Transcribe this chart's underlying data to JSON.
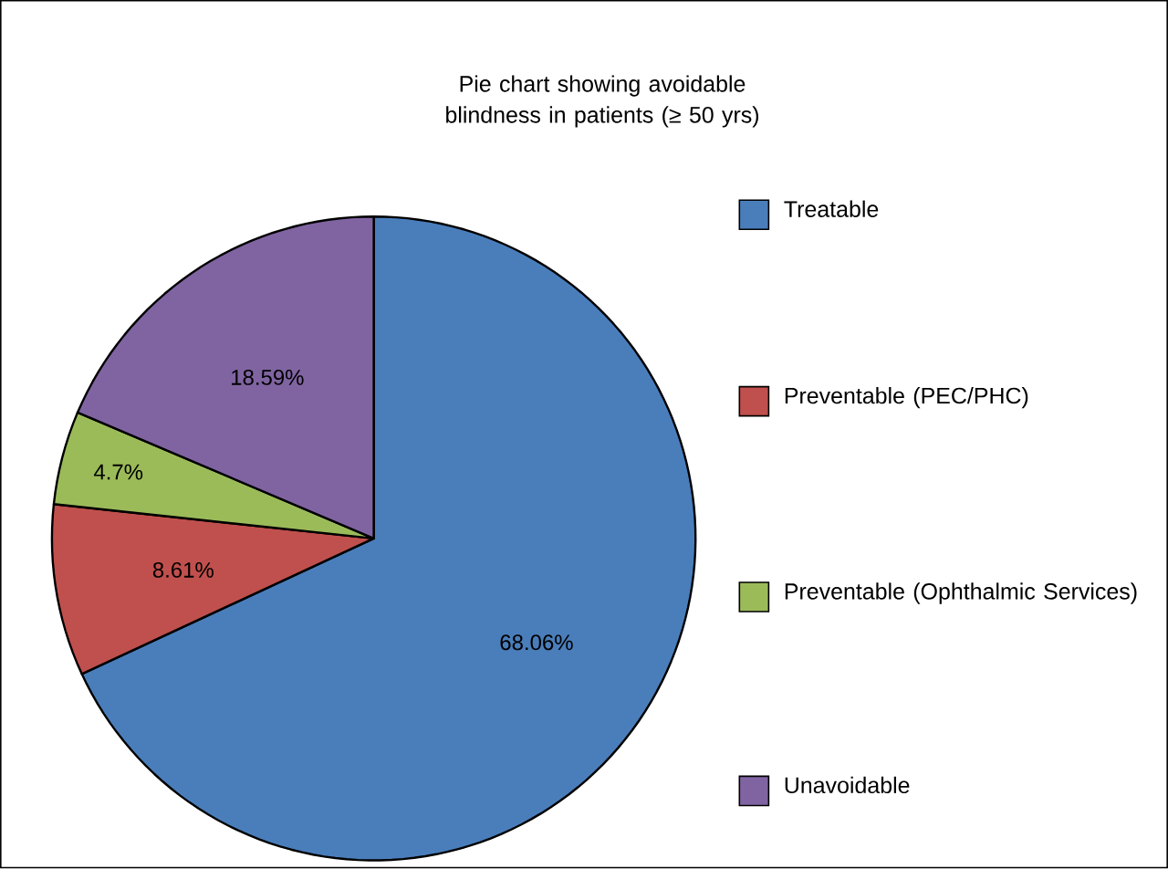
{
  "chart_data": {
    "type": "pie",
    "title": "Pie chart showing avoidable blindness in patients (≥ 50 yrs)",
    "categories": [
      "Treatable",
      "Preventable (PEC/PHC)",
      "Preventable (Ophthalmic Services)",
      "Unavoidable"
    ],
    "values": [
      68.06,
      8.61,
      4.7,
      18.59
    ],
    "value_labels": [
      "68.06%",
      "8.61%",
      "4.7%",
      "18.59%"
    ],
    "colors": [
      "#4a7ebb",
      "#c0504d",
      "#9bbb59",
      "#8064a2"
    ],
    "legend": "right"
  }
}
